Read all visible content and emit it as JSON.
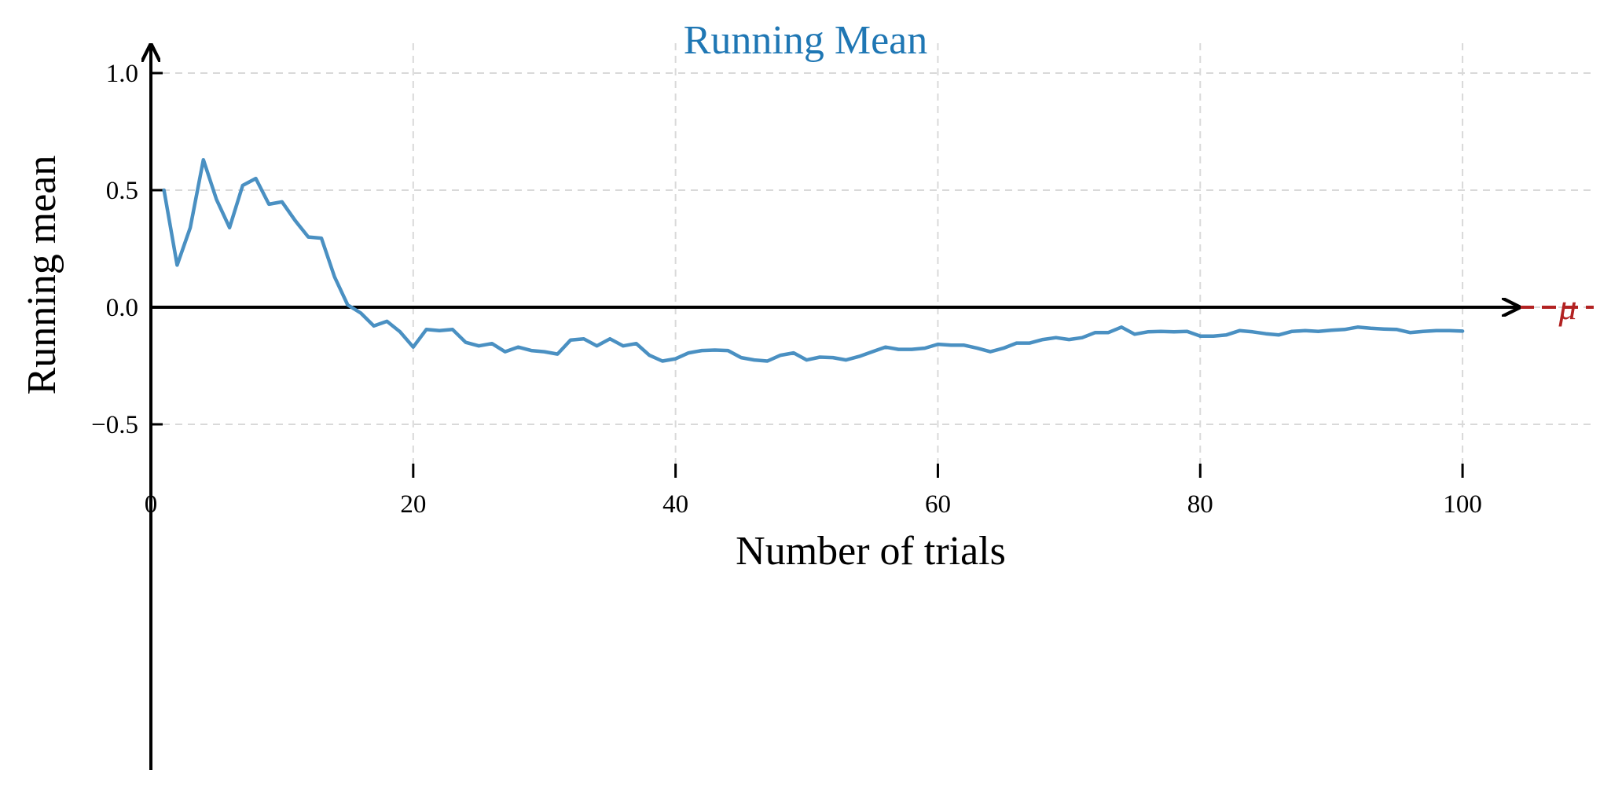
{
  "chart_data": {
    "type": "line",
    "title": "Running Mean",
    "xlabel": "Number of trials",
    "ylabel": "Running mean",
    "xlim": [
      0,
      110
    ],
    "ylim": [
      -0.85,
      1.1
    ],
    "x_ticks": [
      0,
      20,
      40,
      60,
      80,
      100
    ],
    "x_tick_labels": [
      "0",
      "20",
      "40",
      "60",
      "80",
      "100"
    ],
    "y_ticks": [
      -0.5,
      0.0,
      0.5,
      1.0
    ],
    "y_tick_labels": [
      "−0.5",
      "0.0",
      "0.5",
      "1.0"
    ],
    "grid": true,
    "reference_line": {
      "label": "μ",
      "value": 0.0,
      "color": "#b22222",
      "style": "dashed"
    },
    "series": [
      {
        "color": "#4a90c2",
        "x": [
          1,
          2,
          3,
          4,
          5,
          6,
          7,
          8,
          9,
          10,
          11,
          12,
          13,
          14,
          15,
          16,
          17,
          18,
          19,
          20,
          21,
          22,
          23,
          24,
          25,
          26,
          27,
          28,
          29,
          30,
          31,
          32,
          33,
          34,
          35,
          36,
          37,
          38,
          39,
          40,
          41,
          42,
          43,
          44,
          45,
          46,
          47,
          48,
          49,
          50,
          51,
          52,
          53,
          54,
          55,
          56,
          57,
          58,
          59,
          60,
          61,
          62,
          63,
          64,
          65,
          66,
          67,
          68,
          69,
          70,
          71,
          72,
          73,
          74,
          75,
          76,
          77,
          78,
          79,
          80,
          81,
          82,
          83,
          84,
          85,
          86,
          87,
          88,
          89,
          90,
          91,
          92,
          93,
          94,
          95,
          96,
          97,
          98,
          99,
          100
        ],
        "values": [
          0.5,
          0.18,
          0.34,
          0.63,
          0.46,
          0.34,
          0.52,
          0.55,
          0.44,
          0.45,
          0.37,
          0.3,
          0.295,
          0.13,
          0.01,
          -0.025,
          -0.08,
          -0.06,
          -0.105,
          -0.17,
          -0.095,
          -0.1,
          -0.095,
          -0.15,
          -0.165,
          -0.155,
          -0.19,
          -0.17,
          -0.185,
          -0.19,
          -0.2,
          -0.14,
          -0.135,
          -0.165,
          -0.135,
          -0.165,
          -0.155,
          -0.205,
          -0.23,
          -0.22,
          -0.195,
          -0.185,
          -0.183,
          -0.185,
          -0.215,
          -0.225,
          -0.23,
          -0.205,
          -0.195,
          -0.225,
          -0.213,
          -0.215,
          -0.225,
          -0.21,
          -0.19,
          -0.17,
          -0.18,
          -0.18,
          -0.175,
          -0.158,
          -0.162,
          -0.162,
          -0.175,
          -0.19,
          -0.175,
          -0.153,
          -0.153,
          -0.138,
          -0.13,
          -0.138,
          -0.13,
          -0.108,
          -0.108,
          -0.085,
          -0.115,
          -0.105,
          -0.103,
          -0.105,
          -0.103,
          -0.123,
          -0.123,
          -0.118,
          -0.1,
          -0.105,
          -0.113,
          -0.118,
          -0.103,
          -0.1,
          -0.103,
          -0.098,
          -0.095,
          -0.085,
          -0.09,
          -0.093,
          -0.095,
          -0.108,
          -0.103,
          -0.1,
          -0.1,
          -0.102
        ]
      }
    ]
  }
}
